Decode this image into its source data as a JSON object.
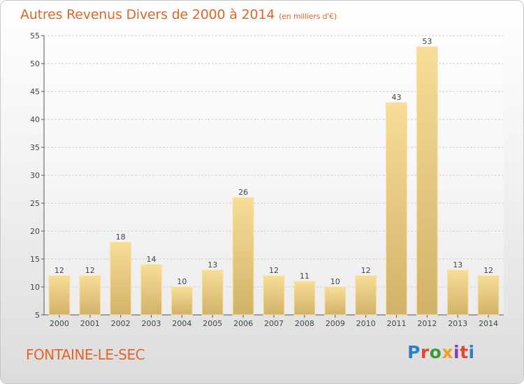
{
  "header": {
    "title": "Autres Revenus Divers de 2000 à 2014",
    "unit": "(en milliers d'€)"
  },
  "footer": {
    "commune": "FONTAINE-LE-SEC",
    "brand": "Proxiti"
  },
  "colors": {
    "title": "#e0662b",
    "bar_light": "#f8dd98",
    "bar_dark": "#d2b268",
    "logo": [
      "#2f7fc6",
      "#e8452c",
      "#3a9a3a",
      "#f0a020",
      "#8a3fb0",
      "#e8452c",
      "#2f7fc6"
    ]
  },
  "chart_data": {
    "type": "bar",
    "title": "Autres Revenus Divers de 2000 à 2014",
    "subtitle": "(en milliers d'€)",
    "categories": [
      "2000",
      "2001",
      "2002",
      "2003",
      "2004",
      "2005",
      "2006",
      "2007",
      "2008",
      "2009",
      "2010",
      "2011",
      "2012",
      "2013",
      "2014"
    ],
    "values": [
      12,
      12,
      18,
      14,
      10,
      13,
      26,
      12,
      11,
      10,
      12,
      43,
      53,
      13,
      12
    ],
    "xlabel": "",
    "ylabel": "",
    "ylim": [
      5,
      55
    ],
    "yticks": [
      5,
      10,
      15,
      20,
      25,
      30,
      35,
      40,
      45,
      50,
      55
    ],
    "grid": "horizontal",
    "legend": "none"
  }
}
